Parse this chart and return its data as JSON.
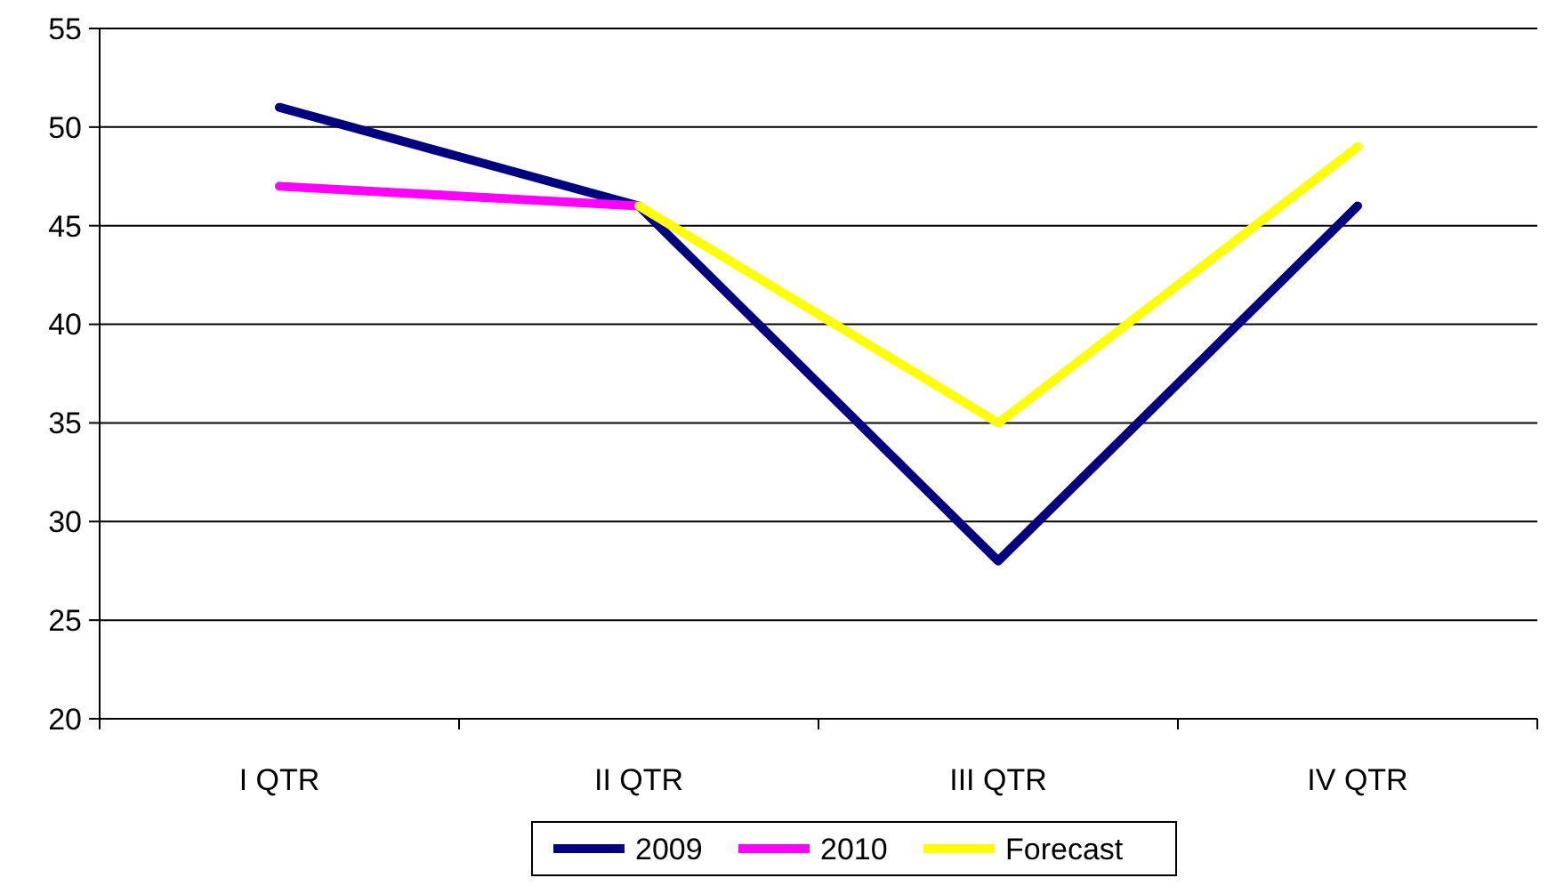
{
  "chart_data": {
    "type": "line",
    "categories": [
      "I QTR",
      "II QTR",
      "III QTR",
      "IV QTR"
    ],
    "series": [
      {
        "name": "2009",
        "color": "#000080",
        "values": [
          51,
          46,
          28,
          46
        ]
      },
      {
        "name": "2010",
        "color": "#ff00ff",
        "values": [
          47,
          46,
          null,
          null
        ]
      },
      {
        "name": "Forecast",
        "color": "#ffff00",
        "values": [
          null,
          46,
          35,
          49
        ]
      }
    ],
    "ylim": [
      20,
      55
    ],
    "yticks": [
      20,
      25,
      30,
      35,
      40,
      45,
      50,
      55
    ],
    "grid": "y",
    "legend": "bottom",
    "marker": "none",
    "line_style": "solid"
  }
}
